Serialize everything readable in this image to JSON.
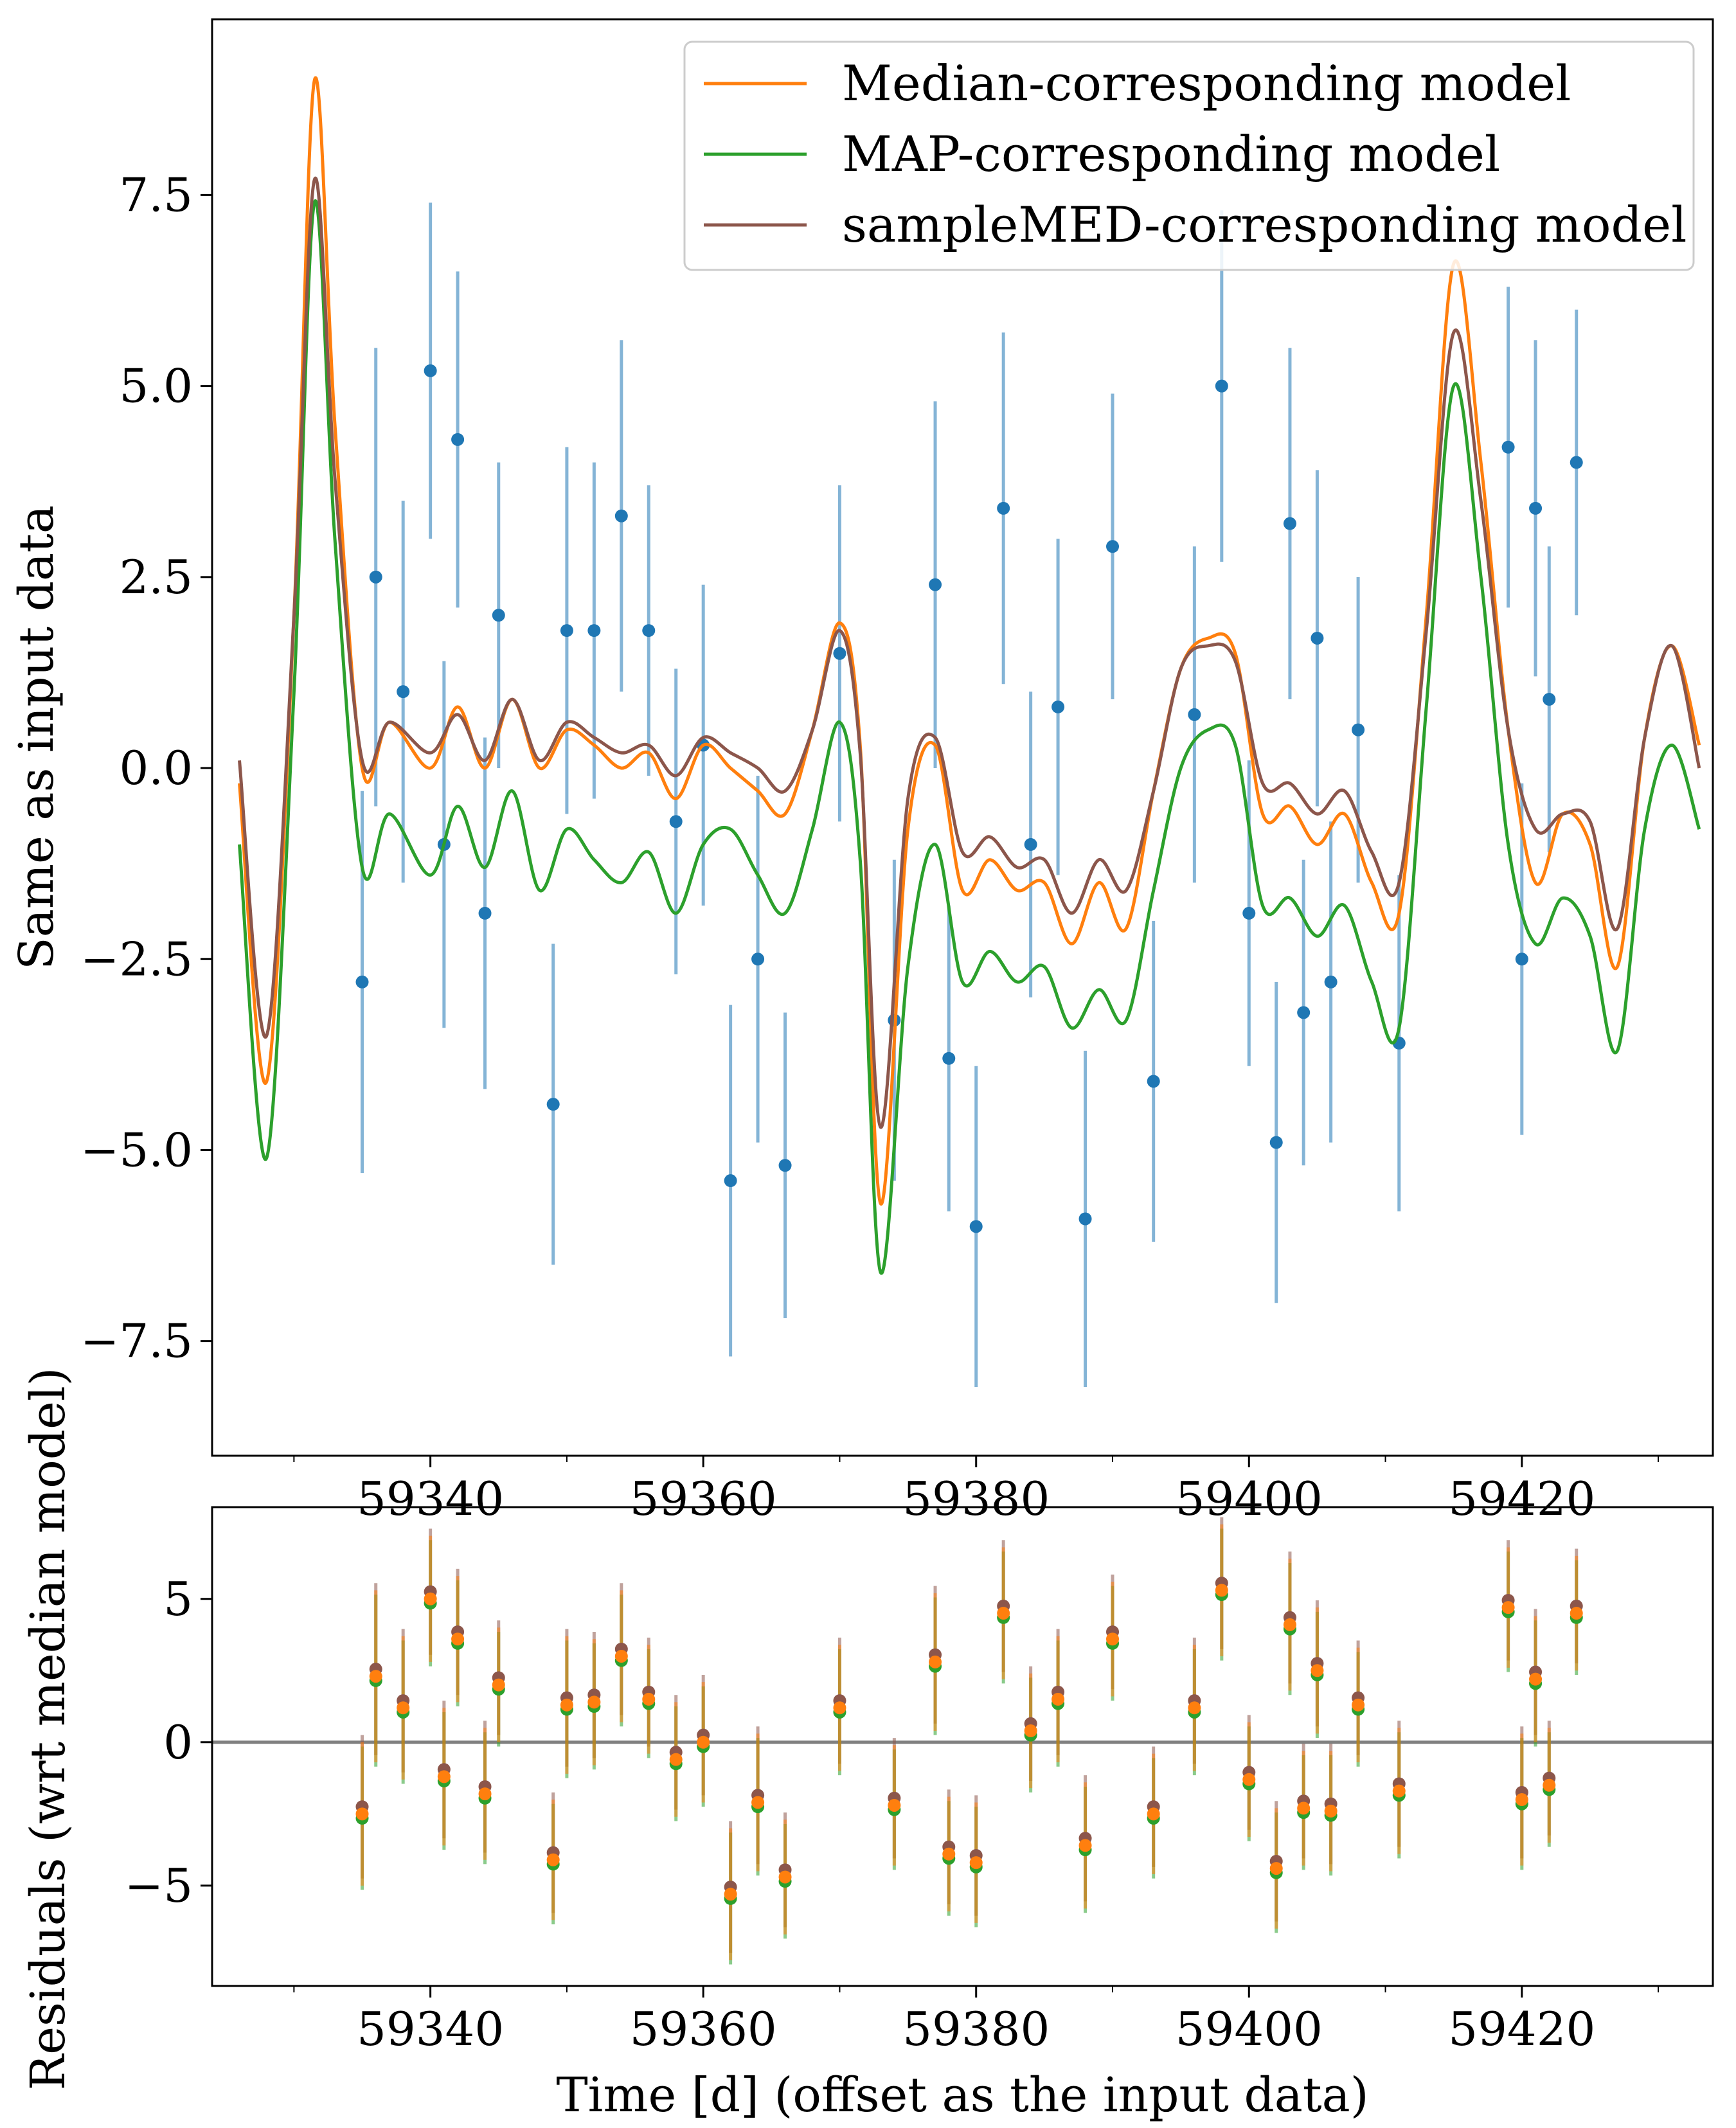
{
  "chart_data": [
    {
      "type": "line",
      "panel": "top",
      "ylabel": "Same as input data",
      "xlim": [
        59324,
        59434
      ],
      "ylim": [
        -9.0,
        9.8
      ],
      "xticks": [
        59340,
        59360,
        59380,
        59400,
        59420
      ],
      "xtick_labels": [
        "59340",
        "59360",
        "59380",
        "59400",
        "59420"
      ],
      "yticks": [
        -7.5,
        -5.0,
        -2.5,
        0.0,
        2.5,
        5.0,
        7.5
      ],
      "ytick_labels": [
        "−7.5",
        "−5.0",
        "−2.5",
        "0.0",
        "2.5",
        "5.0",
        "7.5"
      ],
      "legend": {
        "placement": "top-right",
        "entries": [
          "Median-corresponding model",
          "MAP-corresponding model",
          "sampleMED-corresponding model"
        ]
      },
      "colors": {
        "data": "#1f77b4",
        "median": "#ff7f0e",
        "map": "#2ca02c",
        "samplemed": "#8c564b"
      },
      "series": [
        {
          "name": "Median-corresponding model",
          "x": [
            59326,
            59328,
            59330,
            59331.5,
            59333,
            59335,
            59337,
            59340,
            59342,
            59344,
            59346,
            59348,
            59350,
            59352,
            59354,
            59356,
            59358,
            59360,
            59362,
            59364,
            59366,
            59368,
            59370,
            59371.5,
            59373,
            59375,
            59377,
            59379,
            59381,
            59383,
            59385,
            59387,
            59389,
            59391,
            59393,
            59395,
            59397,
            59399,
            59401,
            59403,
            59405,
            59407,
            59409,
            59411,
            59413,
            59415,
            59417,
            59419,
            59421,
            59423,
            59425,
            59427,
            59429,
            59431,
            59433
          ],
          "values": [
            -0.2,
            -4.1,
            2.0,
            9.0,
            4.5,
            0.0,
            0.6,
            0.0,
            0.8,
            0.0,
            0.9,
            0.0,
            0.5,
            0.3,
            0.0,
            0.2,
            -0.4,
            0.3,
            0.0,
            -0.3,
            -0.6,
            0.5,
            1.9,
            0.3,
            -5.7,
            -0.8,
            0.3,
            -1.6,
            -1.2,
            -1.6,
            -1.5,
            -2.3,
            -1.5,
            -2.1,
            -0.3,
            1.3,
            1.7,
            1.5,
            -0.6,
            -0.5,
            -1.0,
            -0.6,
            -1.5,
            -1.9,
            2.0,
            6.6,
            4.0,
            0.5,
            -1.5,
            -0.6,
            -1.0,
            -2.6,
            0.4,
            1.6,
            0.3
          ]
        },
        {
          "name": "MAP-corresponding model",
          "x": [
            59326,
            59328,
            59330,
            59331.5,
            59333,
            59335,
            59337,
            59340,
            59342,
            59344,
            59346,
            59348,
            59350,
            59352,
            59354,
            59356,
            59358,
            59360,
            59362,
            59364,
            59366,
            59368,
            59370,
            59371.5,
            59373,
            59375,
            59377,
            59379,
            59381,
            59383,
            59385,
            59387,
            59389,
            59391,
            59393,
            59395,
            59397,
            59399,
            59401,
            59403,
            59405,
            59407,
            59409,
            59411,
            59413,
            59415,
            59417,
            59419,
            59421,
            59423,
            59425,
            59427,
            59429,
            59431,
            59433
          ],
          "values": [
            -1.0,
            -5.1,
            1.0,
            7.4,
            3.0,
            -1.3,
            -0.6,
            -1.4,
            -0.5,
            -1.3,
            -0.3,
            -1.6,
            -0.8,
            -1.2,
            -1.5,
            -1.1,
            -1.9,
            -1.0,
            -0.8,
            -1.4,
            -1.9,
            -0.8,
            0.6,
            -1.2,
            -6.6,
            -2.6,
            -1.0,
            -2.8,
            -2.4,
            -2.8,
            -2.6,
            -3.4,
            -2.9,
            -3.3,
            -1.6,
            0.0,
            0.5,
            0.3,
            -1.8,
            -1.7,
            -2.2,
            -1.8,
            -2.8,
            -3.4,
            0.8,
            5.0,
            2.5,
            -1.0,
            -2.3,
            -1.7,
            -2.2,
            -3.7,
            -0.8,
            0.3,
            -0.8
          ]
        },
        {
          "name": "sampleMED-corresponding model",
          "x": [
            59326,
            59328,
            59330,
            59331.5,
            59333,
            59335,
            59337,
            59340,
            59342,
            59344,
            59346,
            59348,
            59350,
            59352,
            59354,
            59356,
            59358,
            59360,
            59362,
            59364,
            59366,
            59368,
            59370,
            59371.5,
            59373,
            59375,
            59377,
            59379,
            59381,
            59383,
            59385,
            59387,
            59389,
            59391,
            59393,
            59395,
            59397,
            59399,
            59401,
            59403,
            59405,
            59407,
            59409,
            59411,
            59413,
            59415,
            59417,
            59419,
            59421,
            59423,
            59425,
            59427,
            59429,
            59431,
            59433
          ],
          "values": [
            0.1,
            -3.5,
            2.0,
            7.7,
            3.8,
            0.1,
            0.6,
            0.2,
            0.7,
            0.1,
            0.9,
            0.1,
            0.6,
            0.4,
            0.2,
            0.3,
            -0.1,
            0.4,
            0.2,
            0.0,
            -0.3,
            0.5,
            1.8,
            0.2,
            -4.7,
            -0.4,
            0.4,
            -1.1,
            -0.9,
            -1.3,
            -1.2,
            -1.9,
            -1.2,
            -1.6,
            -0.3,
            1.3,
            1.6,
            1.4,
            -0.2,
            -0.2,
            -0.6,
            -0.3,
            -1.1,
            -1.5,
            1.8,
            5.7,
            3.5,
            0.5,
            -0.8,
            -0.6,
            -0.7,
            -2.1,
            0.4,
            1.6,
            0.0
          ]
        }
      ],
      "data_points": {
        "x": [
          59335,
          59336,
          59338,
          59340,
          59341,
          59342,
          59344,
          59345,
          59349,
          59350,
          59352,
          59354,
          59356,
          59358,
          59360,
          59362,
          59364,
          59366,
          59370,
          59374,
          59377,
          59378,
          59380,
          59382,
          59384,
          59386,
          59388,
          59390,
          59393,
          59396,
          59398,
          59400,
          59402,
          59403,
          59404,
          59405,
          59406,
          59408,
          59411,
          59419,
          59420,
          59421,
          59422,
          59424
        ],
        "y": [
          -2.8,
          2.5,
          1.0,
          5.2,
          -1.0,
          4.3,
          -1.9,
          2.0,
          -4.4,
          1.8,
          1.8,
          3.3,
          1.8,
          -0.7,
          0.3,
          -5.4,
          -2.5,
          -5.2,
          1.5,
          -3.3,
          2.4,
          -3.8,
          -6.0,
          3.4,
          -1.0,
          0.8,
          -5.9,
          2.9,
          -4.1,
          0.7,
          5.0,
          -1.9,
          -4.9,
          3.2,
          -3.2,
          1.7,
          -2.8,
          0.5,
          -3.6,
          4.2,
          -2.5,
          3.4,
          0.9,
          4.0
        ],
        "yerr": [
          2.5,
          3.0,
          2.5,
          2.2,
          2.4,
          2.2,
          2.3,
          2.0,
          2.1,
          2.4,
          2.2,
          2.3,
          1.9,
          2.0,
          2.1,
          2.3,
          2.4,
          2.0,
          2.2,
          2.1,
          2.4,
          2.0,
          2.1,
          2.3,
          2.0,
          2.2,
          2.2,
          2.0,
          2.1,
          2.2,
          2.3,
          2.0,
          2.1,
          2.3,
          2.0,
          2.2,
          2.1,
          2.0,
          2.2,
          2.1,
          2.3,
          2.2,
          2.0,
          2.0
        ]
      }
    },
    {
      "type": "scatter",
      "panel": "bottom",
      "xlabel": "Time [d] (offset as the input data)",
      "ylabel": "Residuals (wrt median model)",
      "xlim": [
        59324,
        59434
      ],
      "ylim": [
        -8.5,
        8.2
      ],
      "xticks": [
        59340,
        59360,
        59380,
        59400,
        59420
      ],
      "xtick_labels": [
        "59340",
        "59360",
        "59380",
        "59400",
        "59420"
      ],
      "yticks": [
        -5,
        0,
        5
      ],
      "ytick_labels": [
        "−5",
        "0",
        "5"
      ],
      "zero_line": true,
      "colors": {
        "median": "#ff7f0e",
        "map": "#2ca02c",
        "samplemed": "#8c564b",
        "zero_line": "#808080"
      },
      "residuals": {
        "x": [
          59335,
          59336,
          59338,
          59340,
          59341,
          59342,
          59344,
          59345,
          59349,
          59350,
          59352,
          59354,
          59356,
          59358,
          59360,
          59362,
          59364,
          59366,
          59370,
          59374,
          59377,
          59378,
          59380,
          59382,
          59384,
          59386,
          59388,
          59390,
          59393,
          59396,
          59398,
          59400,
          59402,
          59403,
          59404,
          59405,
          59406,
          59408,
          59411,
          59419,
          59420,
          59421,
          59422,
          59424
        ],
        "y": [
          -2.5,
          2.3,
          1.2,
          5.0,
          -1.2,
          3.6,
          -1.8,
          2.0,
          -4.1,
          1.3,
          1.4,
          3.0,
          1.5,
          -0.6,
          0.0,
          -5.3,
          -2.1,
          -4.7,
          1.2,
          -2.2,
          2.8,
          -3.9,
          -4.2,
          4.5,
          0.4,
          1.5,
          -3.6,
          3.6,
          -2.5,
          1.2,
          5.3,
          -1.3,
          -4.4,
          4.1,
          -2.3,
          2.5,
          -2.4,
          1.3,
          -1.7,
          4.7,
          -2.0,
          2.2,
          -1.5,
          4.5
        ],
        "yerr": [
          2.5,
          3.0,
          2.5,
          2.2,
          2.4,
          2.2,
          2.3,
          2.0,
          2.1,
          2.4,
          2.2,
          2.3,
          1.9,
          2.0,
          2.1,
          2.3,
          2.4,
          2.0,
          2.2,
          2.1,
          2.4,
          2.0,
          2.1,
          2.3,
          2.0,
          2.2,
          2.2,
          2.0,
          2.1,
          2.2,
          2.3,
          2.0,
          2.1,
          2.3,
          2.0,
          2.2,
          2.1,
          2.0,
          2.2,
          2.1,
          2.3,
          2.2,
          2.0,
          2.0
        ]
      }
    }
  ]
}
